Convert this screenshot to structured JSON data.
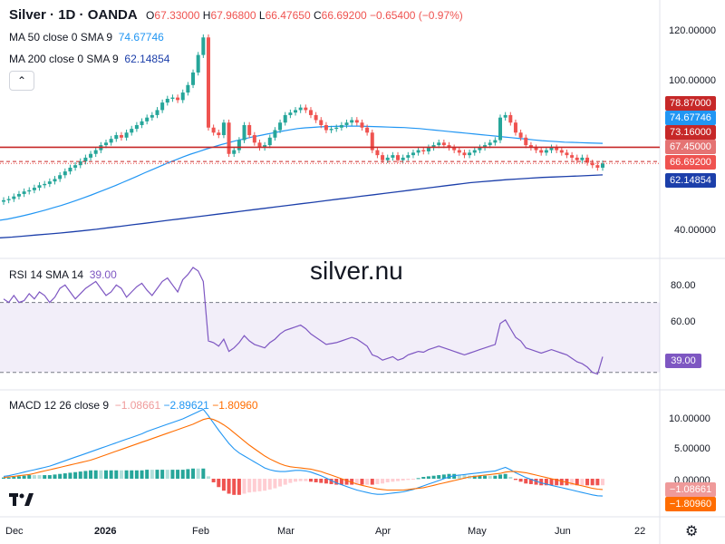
{
  "header": {
    "symbol": "Silver · 1D · OANDA",
    "o_label": "O",
    "o_value": "67.33000",
    "h_label": "H",
    "h_value": "67.96800",
    "l_label": "L",
    "l_value": "66.47650",
    "c_label": "C",
    "c_value": "66.69200",
    "change": "−0.65400 (−0.97%)"
  },
  "indicators": {
    "ma50_label": "MA 50 close 0 SMA 9",
    "ma50_value": "74.67746",
    "ma200_label": "MA 200 close 0 SMA 9",
    "ma200_value": "62.14854",
    "rsi_label": "RSI 14 SMA 14",
    "rsi_value": "39.00",
    "macd_label": "MACD 12 26 close 9",
    "macd_hist": "−1.08661",
    "macd_line": "−2.89621",
    "macd_signal": "−1.80960"
  },
  "watermark": "silver.nu",
  "colors": {
    "up": "#26a69a",
    "down": "#ef5350",
    "ma50": "#2196f3",
    "ma200": "#1c3faa",
    "rsi": "#7e57c2",
    "macd": "#2196f3",
    "signal": "#ff6d00",
    "hline": "#c62828",
    "grid": "#e0e3eb"
  },
  "price_axis": {
    "ticks": [
      "120.00000",
      "100.00000",
      "40.00000"
    ],
    "badges": [
      {
        "text": "78.87000",
        "color": "#c62828",
        "value": 78.87
      },
      {
        "text": "74.67746",
        "color": "#2196f3",
        "value": 74.67746
      },
      {
        "text": "73.16000",
        "color": "#c62828",
        "value": 73.16
      },
      {
        "text": "67.45000",
        "color": "#e57373",
        "value": 67.45
      },
      {
        "text": "66.69200",
        "color": "#ef5350",
        "value": 66.692
      },
      {
        "text": "62.14854",
        "color": "#1c3faa",
        "value": 62.14854
      }
    ]
  },
  "rsi_axis": {
    "ticks": [
      "80.00",
      "60.00"
    ],
    "badge": "39.00"
  },
  "macd_axis": {
    "ticks": [
      "10.00000",
      "5.00000",
      "0.00000"
    ],
    "badges": [
      "−1.08661",
      "−1.80960"
    ]
  },
  "time_axis": [
    "Dec",
    "2026",
    "Feb",
    "Mar",
    "Apr",
    "May",
    "Jun",
    "22"
  ],
  "chart_data": {
    "type": "candlestick",
    "symbol": "Silver",
    "interval": "1D",
    "source": "OANDA",
    "last": {
      "open": 67.33,
      "high": 67.968,
      "low": 66.4765,
      "close": 66.692,
      "change": -0.654,
      "change_pct": -0.97
    },
    "horizontal_lines": [
      73.16,
      67.45,
      66.692
    ],
    "price_range": [
      40,
      120
    ],
    "close_series": [
      52,
      52.5,
      53.5,
      54.5,
      55.5,
      56,
      57,
      58,
      58.5,
      59.5,
      60.5,
      62,
      63.5,
      65,
      66,
      67.5,
      69,
      70.5,
      72,
      74,
      75,
      76.5,
      78,
      77,
      79,
      80.5,
      82,
      83.5,
      85,
      86,
      88,
      91,
      92.5,
      93,
      92,
      95,
      98,
      103,
      110,
      117,
      81,
      79,
      78,
      83,
      70.5,
      72,
      76,
      82,
      78,
      75,
      73,
      74,
      77,
      80,
      83,
      86,
      87,
      88,
      89,
      88,
      86,
      84,
      82,
      80,
      80.5,
      81,
      82,
      83,
      84,
      83,
      81,
      79,
      72,
      70,
      68,
      69,
      70,
      68,
      69,
      70,
      71,
      72,
      71.5,
      73,
      74,
      75,
      74,
      73,
      72,
      71,
      70,
      71,
      72,
      73,
      74,
      75,
      76,
      85,
      86,
      83,
      79,
      77,
      74,
      73,
      72,
      71,
      72,
      73,
      72,
      71,
      70,
      69,
      68,
      69,
      67,
      66,
      65,
      66.7
    ],
    "ma50_series": [
      44,
      44.5,
      45.1,
      45.8,
      46.5,
      47.3,
      48.1,
      49,
      49.9,
      50.9,
      51.9,
      53,
      54.1,
      55.3,
      56.5,
      57.7,
      59,
      60.3,
      61.6,
      63,
      64.3,
      65.6,
      66.9,
      68.1,
      69.3,
      70.4,
      71.4,
      72.4,
      73.3,
      74.2,
      75,
      75.8,
      76.5,
      77.2,
      77.8,
      78.4,
      79,
      79.6,
      80.1,
      80.6,
      80.9,
      81.1,
      81.3,
      81.4,
      81.5,
      81.6,
      81.6,
      81.6,
      81.5,
      81.4,
      81.3,
      81.2,
      81.1,
      81,
      80.8,
      80.6,
      80.3,
      80,
      79.7,
      79.4,
      79.1,
      78.8,
      78.5,
      78.2,
      77.9,
      77.6,
      77.3,
      77,
      76.7,
      76.4,
      76.1,
      75.8,
      75.6,
      75.4,
      75.2,
      75.1,
      75,
      74.9,
      74.8,
      74.7
    ],
    "ma200_series": [
      37,
      37.3,
      37.7,
      38.1,
      38.5,
      38.9,
      39.4,
      39.9,
      40.4,
      41,
      41.6,
      42.2,
      42.8,
      43.4,
      44,
      44.6,
      45.2,
      45.8,
      46.4,
      47,
      47.6,
      48.2,
      48.8,
      49.4,
      50,
      50.6,
      51.2,
      51.8,
      52.4,
      53,
      53.6,
      54.2,
      54.8,
      55.4,
      56,
      56.6,
      57.2,
      57.8,
      58.4,
      59,
      59.4,
      59.8,
      60.2,
      60.5,
      60.8,
      61.1,
      61.3,
      61.5,
      61.7,
      61.9,
      62.1
    ],
    "rsi": {
      "range": [
        20,
        90
      ],
      "overbought": 70,
      "oversold": 30,
      "series": [
        72,
        70,
        74,
        70,
        71,
        75,
        72,
        76,
        74,
        70,
        73,
        78,
        80,
        76,
        72,
        75,
        78,
        80,
        82,
        78,
        74,
        76,
        80,
        78,
        73,
        76,
        79,
        81,
        77,
        74,
        78,
        82,
        84,
        80,
        76,
        83,
        86,
        90,
        88,
        82,
        48,
        47,
        45,
        49,
        42,
        44,
        47,
        51,
        48,
        46,
        45,
        44,
        47,
        49,
        52,
        54,
        55,
        56,
        57,
        55,
        52,
        50,
        48,
        46,
        46.5,
        47,
        48,
        49,
        50,
        49,
        47,
        45,
        40,
        39,
        37,
        38,
        39,
        37,
        38,
        40,
        41,
        42,
        41.5,
        43,
        44,
        45,
        44,
        43,
        42,
        41,
        40,
        41,
        42,
        43,
        44,
        45,
        46,
        58,
        60,
        55,
        50,
        48,
        44,
        43,
        42,
        41,
        42,
        43,
        42,
        41,
        40,
        38,
        36,
        35,
        33,
        30,
        29,
        39
      ]
    },
    "macd": {
      "range": [
        -4,
        12
      ],
      "macd_series": [
        0.4,
        0.5,
        0.7,
        0.9,
        1.1,
        1.3,
        1.5,
        1.7,
        1.9,
        2.1,
        2.4,
        2.7,
        3,
        3.3,
        3.6,
        3.9,
        4.2,
        4.5,
        4.8,
        5.1,
        5.4,
        5.7,
        6,
        6.3,
        6.6,
        6.9,
        7.2,
        7.5,
        7.9,
        8.2,
        8.5,
        8.8,
        9.1,
        9.4,
        9.7,
        10,
        10.4,
        10.8,
        11.2,
        11.6,
        10.5,
        9.3,
        8.1,
        7,
        5.9,
        5,
        4.3,
        3.8,
        3.3,
        2.8,
        2.3,
        1.8,
        1.5,
        1.3,
        1.2,
        1.2,
        1.3,
        1.4,
        1.4,
        1.3,
        1.1,
        0.8,
        0.5,
        0.1,
        -0.3,
        -0.7,
        -1,
        -1.3,
        -1.6,
        -1.9,
        -2.1,
        -2.3,
        -2.5,
        -2.6,
        -2.6,
        -2.5,
        -2.4,
        -2.3,
        -2.2,
        -2,
        -1.8,
        -1.5,
        -1.2,
        -0.9,
        -0.6,
        -0.3,
        0,
        0.3,
        0.5,
        0.6,
        0.7,
        0.8,
        0.9,
        1,
        1.1,
        1.2,
        1.3,
        1.6,
        1.9,
        1.5,
        1.0,
        0.6,
        0.2,
        -0.1,
        -0.4,
        -0.7,
        -0.9,
        -1.1,
        -1.3,
        -1.5,
        -1.7,
        -1.9,
        -2.1,
        -2.3,
        -2.5,
        -2.7,
        -2.85,
        -2.9
      ],
      "signal_series": [
        0.2,
        0.3,
        0.4,
        0.5,
        0.6,
        0.7,
        0.9,
        1.1,
        1.3,
        1.5,
        1.7,
        1.9,
        2.1,
        2.3,
        2.5,
        2.7,
        2.9,
        3.1,
        3.4,
        3.7,
        4,
        4.3,
        4.6,
        4.9,
        5.2,
        5.5,
        5.8,
        6.1,
        6.4,
        6.7,
        7,
        7.3,
        7.6,
        7.9,
        8.2,
        8.5,
        8.8,
        9.1,
        9.5,
        9.9,
        10.1,
        9.9,
        9.5,
        9,
        8.4,
        7.7,
        7,
        6.3,
        5.6,
        5,
        4.4,
        3.8,
        3.3,
        2.9,
        2.5,
        2.2,
        2,
        1.9,
        1.8,
        1.7,
        1.6,
        1.4,
        1.2,
        0.9,
        0.6,
        0.3,
        0,
        -0.3,
        -0.6,
        -0.9,
        -1.1,
        -1.3,
        -1.5,
        -1.7,
        -1.8,
        -1.9,
        -1.9,
        -1.9,
        -1.9,
        -1.8,
        -1.7,
        -1.6,
        -1.5,
        -1.3,
        -1.1,
        -0.9,
        -0.7,
        -0.5,
        -0.3,
        -0.1,
        0.1,
        0.3,
        0.4,
        0.5,
        0.6,
        0.7,
        0.8,
        0.9,
        1.1,
        1.2,
        1.2,
        1.1,
        1.0,
        0.8,
        0.6,
        0.4,
        0.2,
        0,
        -0.2,
        -0.4,
        -0.6,
        -0.8,
        -1.0,
        -1.2,
        -1.4,
        -1.6,
        -1.75,
        -1.81
      ]
    }
  }
}
